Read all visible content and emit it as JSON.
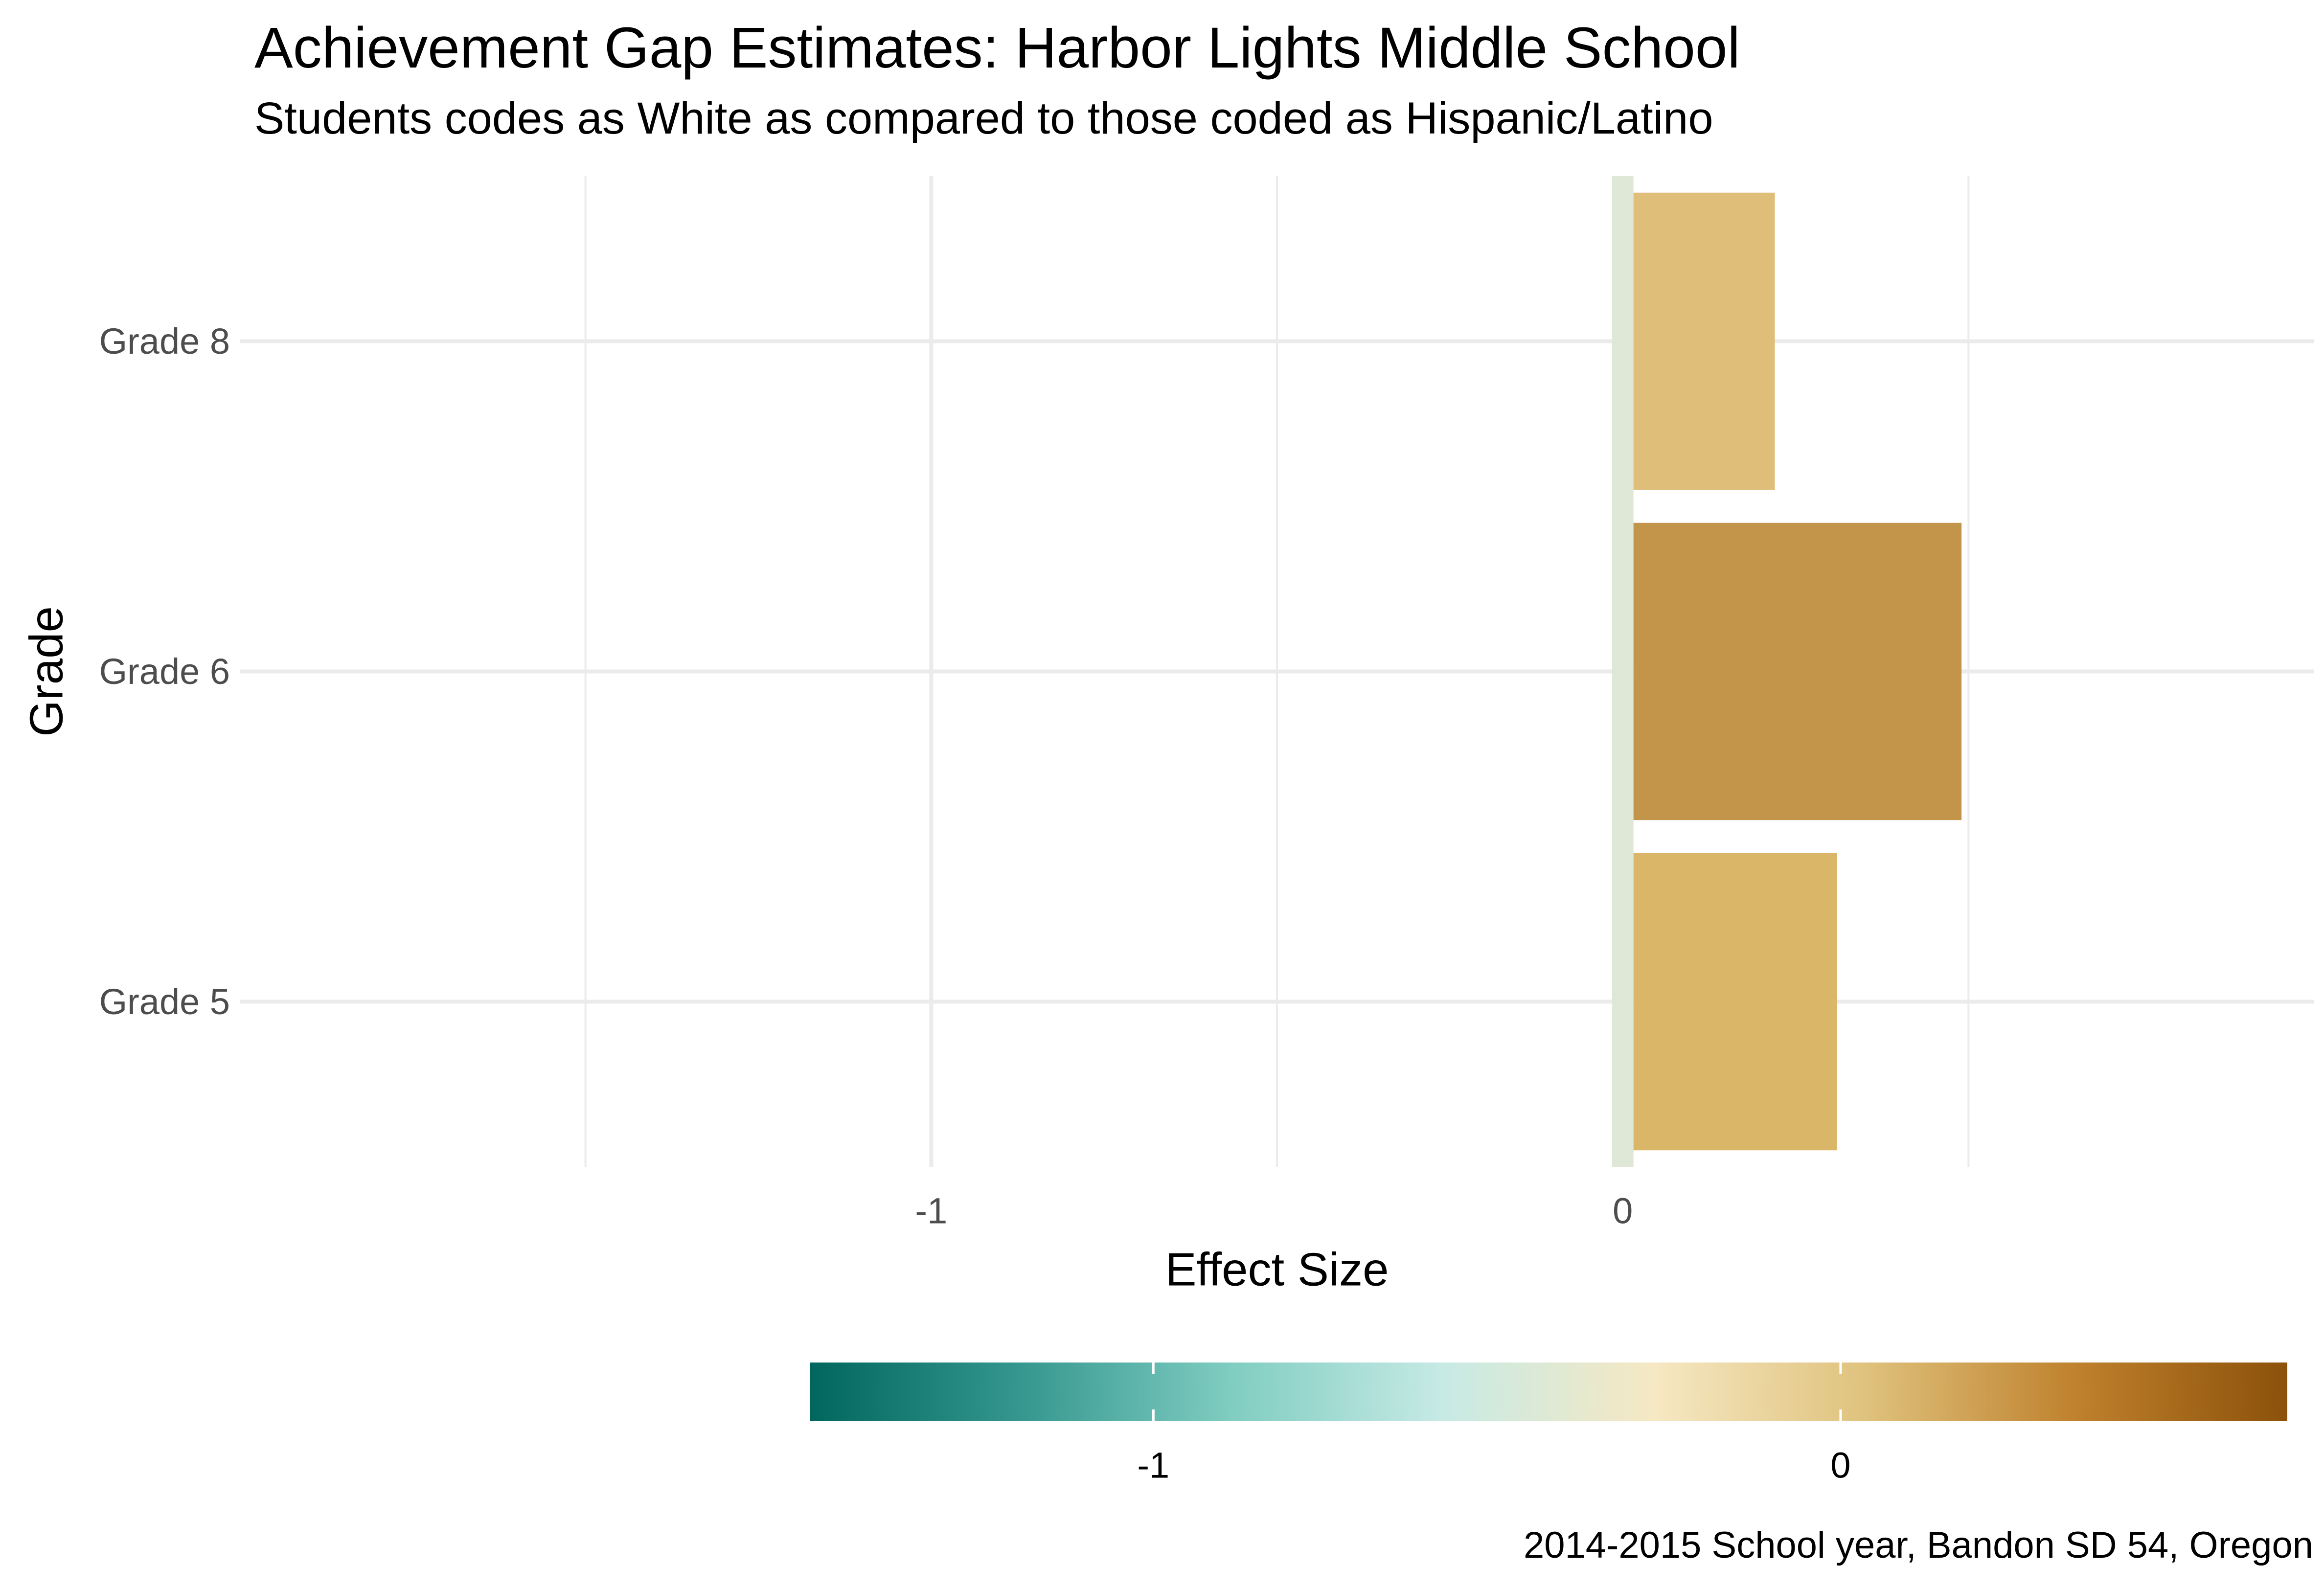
{
  "chart_data": {
    "type": "bar",
    "orientation": "horizontal",
    "title": "Achievement Gap Estimates: Harbor Lights Middle School",
    "subtitle": "Students codes as White as compared to those coded as Hispanic/Latino",
    "caption": "2014-2015 School year, Bandon SD 54, Oregon",
    "xlabel": "Effect Size",
    "ylabel": "Grade",
    "categories": [
      "Grade 5",
      "Grade 6",
      "Grade 8"
    ],
    "values": [
      0.31,
      0.49,
      0.22
    ],
    "bar_colors": [
      "#d9b668",
      "#c3954a",
      "#dfbe7a"
    ],
    "xlim": [
      -2.0,
      1.0
    ],
    "x_ticks": [
      -1,
      0
    ],
    "x_tick_labels": [
      "-1",
      "0"
    ],
    "grid": true,
    "legend": {
      "type": "colorbar",
      "placement": "bottom",
      "range": [
        -1.5,
        0.65
      ],
      "ticks": [
        -1,
        0
      ],
      "tick_labels": [
        "-1",
        "0"
      ],
      "colors": [
        "#01665e",
        "#35978f",
        "#80cdc1",
        "#c7eae5",
        "#f6e8c3",
        "#dfc27d",
        "#bf812d",
        "#8c510a"
      ]
    }
  }
}
